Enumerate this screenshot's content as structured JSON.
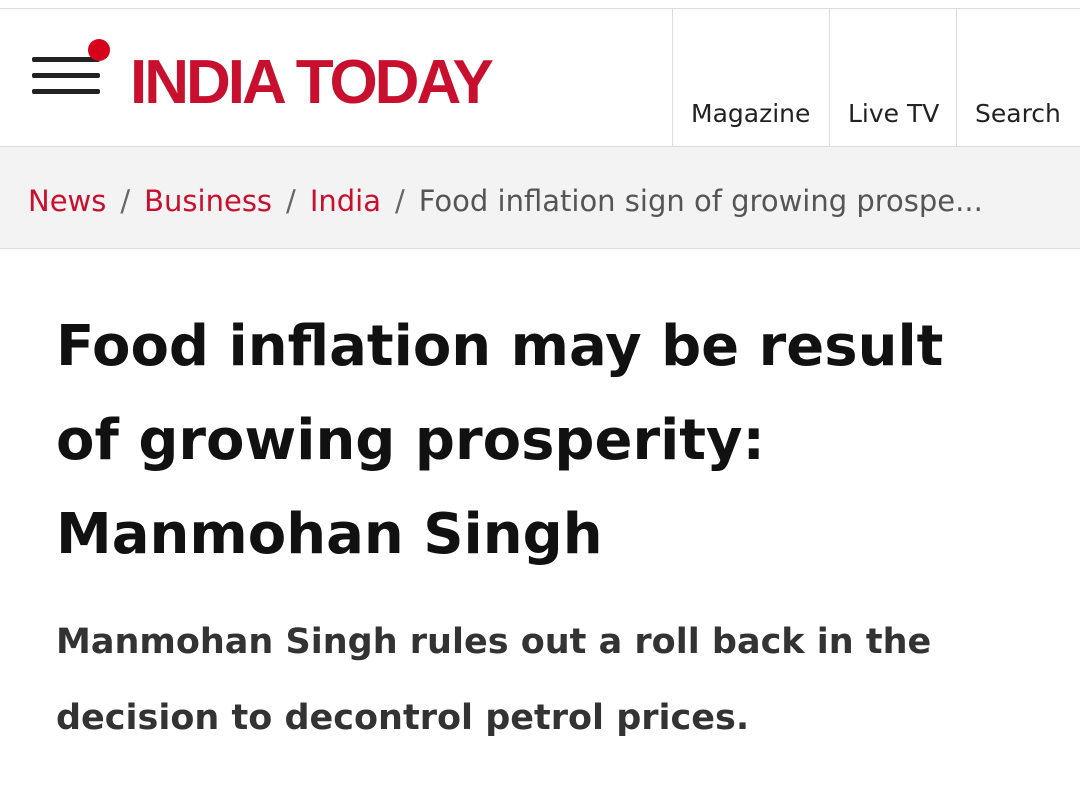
{
  "header": {
    "logo": "INDIA TODAY",
    "nav": [
      "Magazine",
      "Live TV",
      "Search"
    ]
  },
  "breadcrumb": [
    "News",
    "Business",
    "India",
    "Food inflation sign of growing prospe..."
  ],
  "article": {
    "headline": "Food inflation may be result of growing prosperity: Manmohan Singh",
    "summary": "Manmohan Singh rules out a roll back in the decision to decontrol petrol prices."
  }
}
